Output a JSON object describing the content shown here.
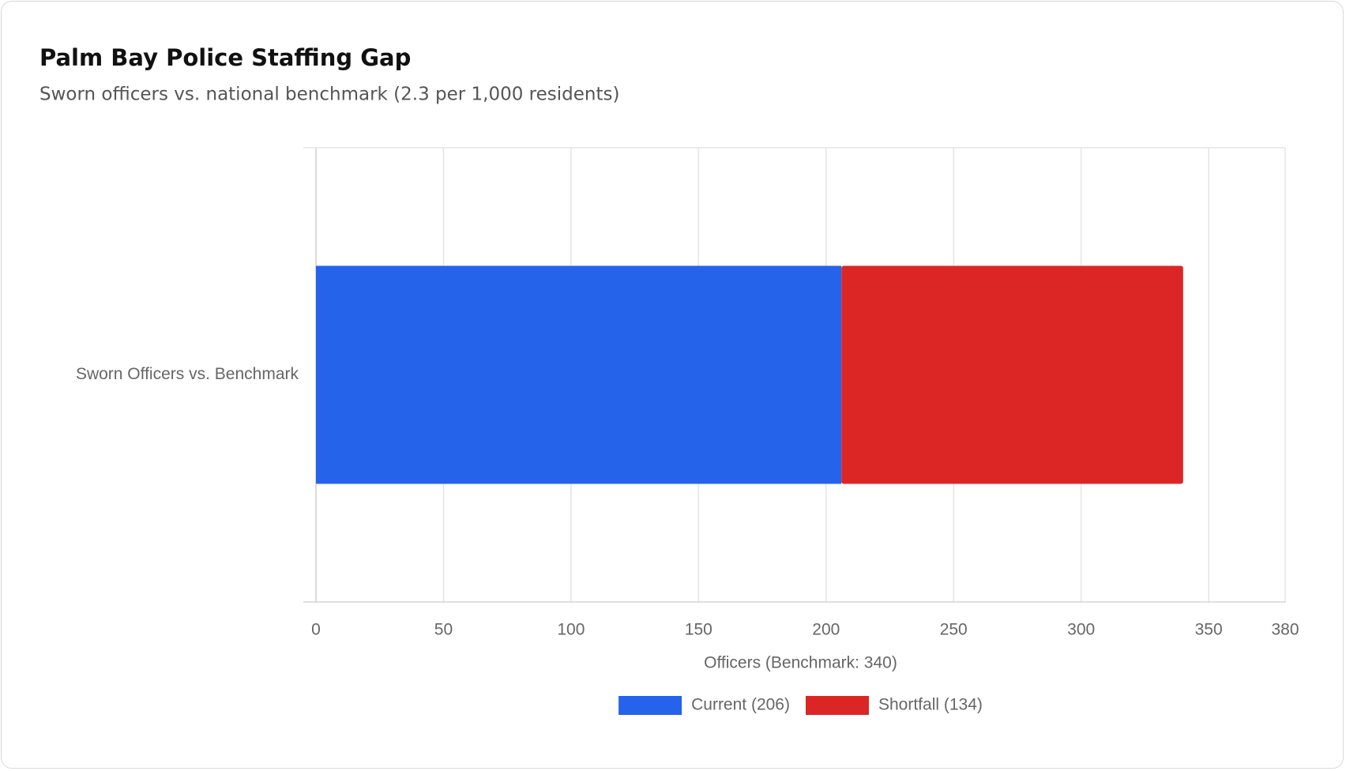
{
  "chart_data": {
    "type": "stacked-bar-horizontal",
    "title": "Palm Bay Police Staffing Gap",
    "subtitle": "Sworn officers vs. national benchmark (2.3 per 1,000 residents)",
    "x_label": "Officers (Benchmark: 340)",
    "categories": [
      "Sworn Officers vs. Benchmark"
    ],
    "series": [
      {
        "name": "Current (206)",
        "color": "#2563eb",
        "values": [
          206
        ]
      },
      {
        "name": "Shortfall (134)",
        "color": "#dc2626",
        "values": [
          134
        ]
      }
    ],
    "xlim": [
      0,
      380
    ],
    "xticks": [
      0,
      50,
      100,
      150,
      200,
      250,
      300,
      350,
      380
    ],
    "grid": true,
    "legend": "bottom"
  }
}
